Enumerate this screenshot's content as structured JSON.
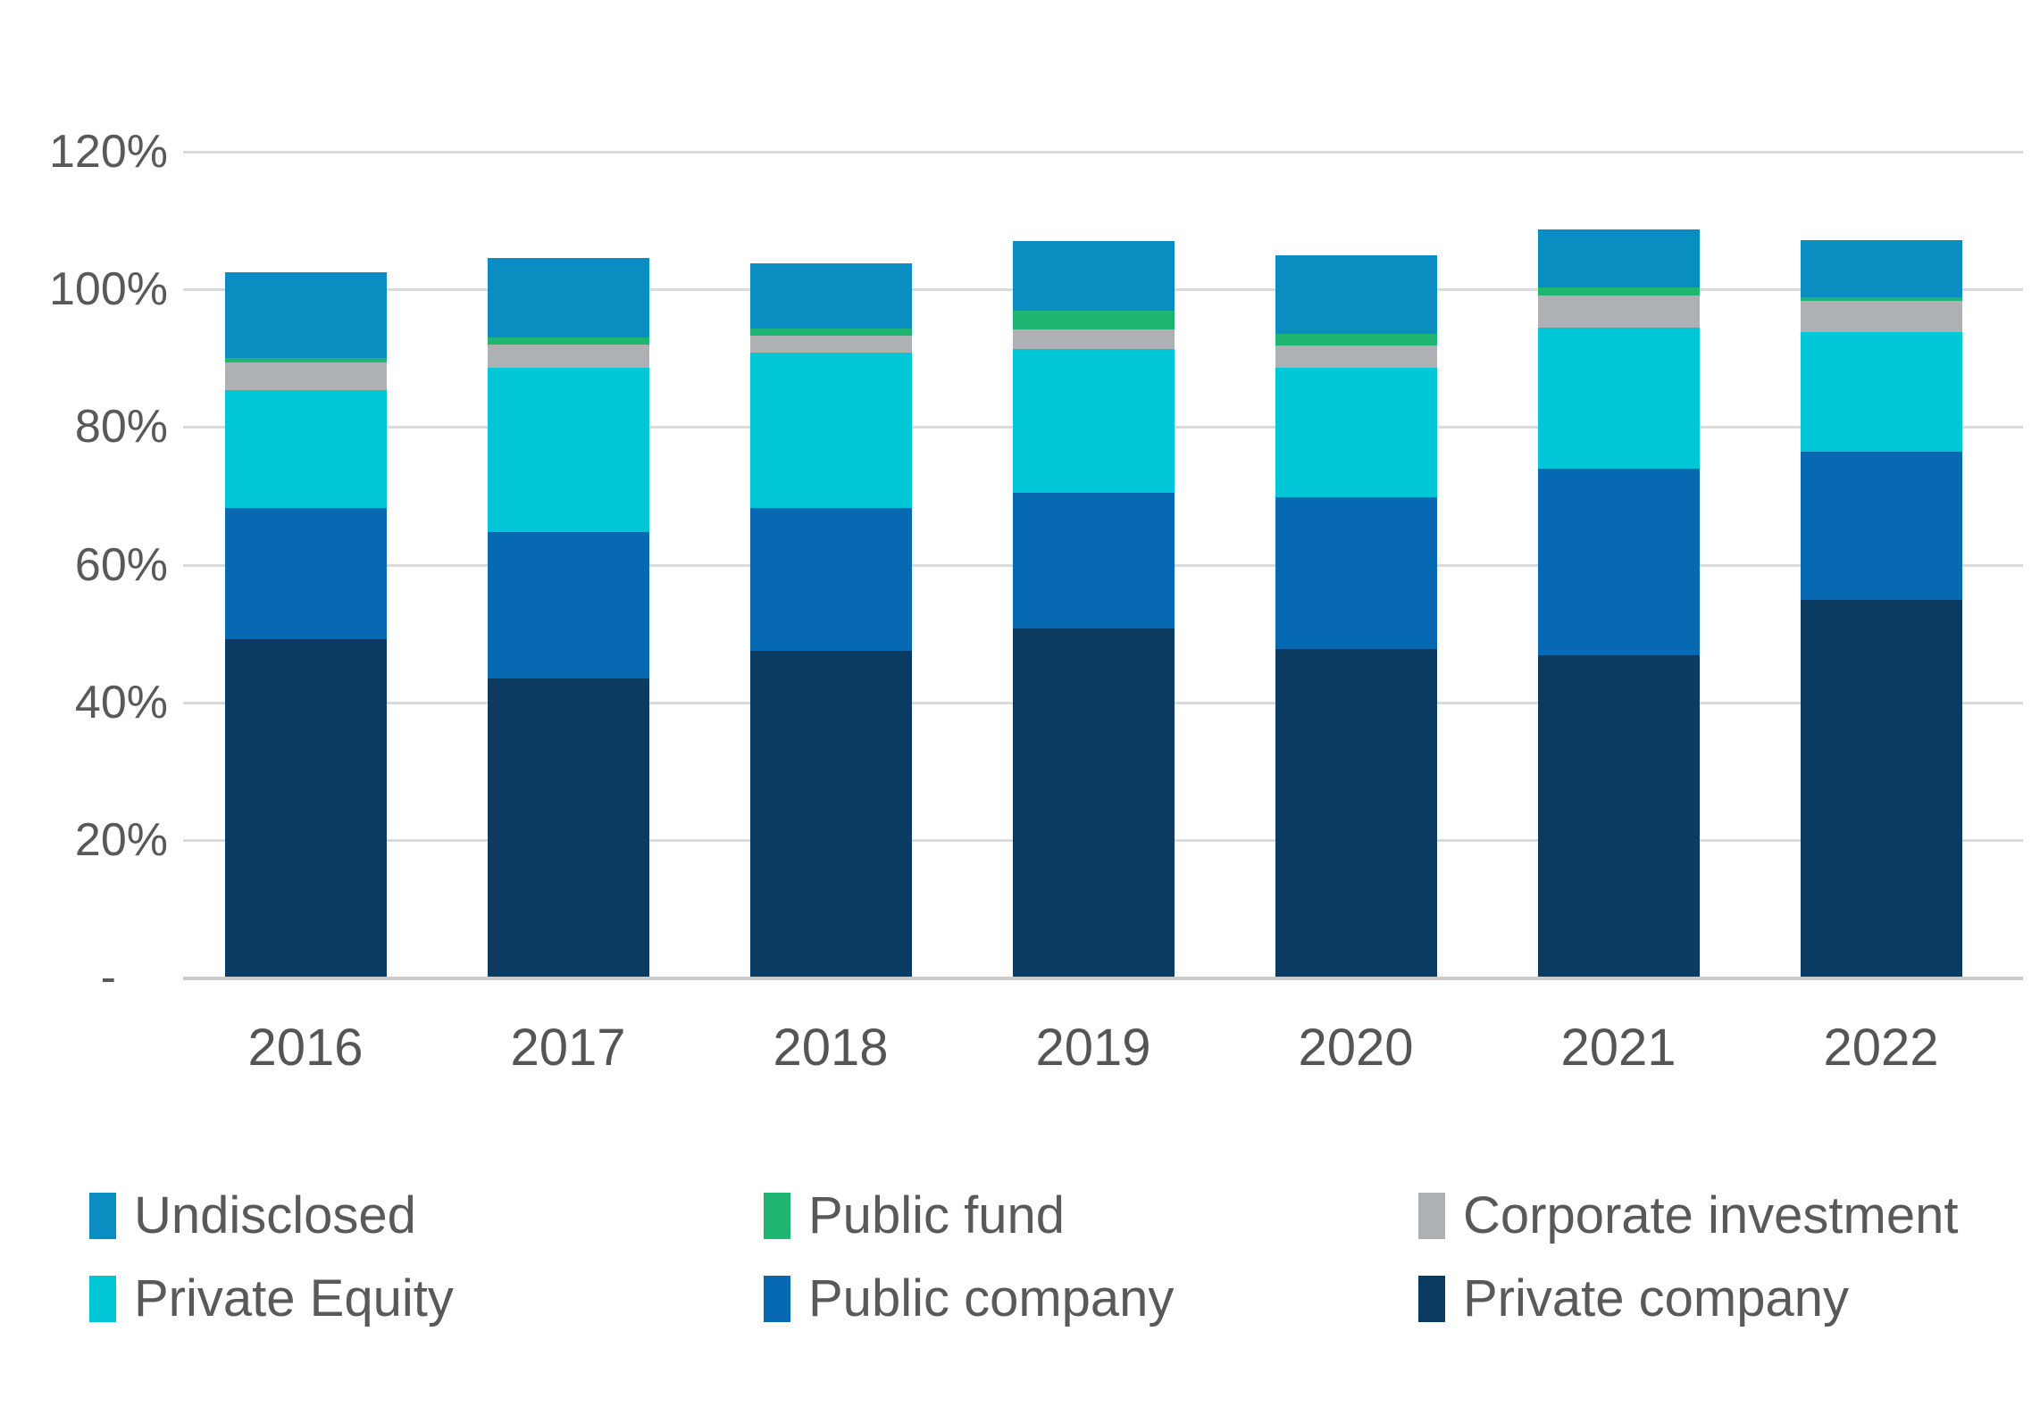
{
  "chart_data": {
    "type": "bar",
    "stacked": true,
    "title": "",
    "xlabel": "",
    "ylabel": "",
    "categories": [
      "2016",
      "2017",
      "2018",
      "2019",
      "2020",
      "2021",
      "2022"
    ],
    "series": [
      {
        "name": "Private company",
        "color": "#0B3B60",
        "values": [
          49.2,
          43.5,
          47.5,
          50.7,
          47.7,
          46.8,
          54.9
        ]
      },
      {
        "name": "Public company",
        "color": "#0669B1",
        "values": [
          19.0,
          21.2,
          20.8,
          19.7,
          22.1,
          27.2,
          21.5
        ]
      },
      {
        "name": "Private Equity",
        "color": "#00C6D5",
        "values": [
          17.1,
          23.9,
          22.5,
          20.9,
          18.8,
          20.5,
          17.4
        ]
      },
      {
        "name": "Corporate investment",
        "color": "#AEB1B3",
        "values": [
          4.1,
          3.4,
          2.5,
          2.9,
          3.3,
          4.6,
          4.6
        ]
      },
      {
        "name": "Public fund",
        "color": "#1FB573",
        "values": [
          0.6,
          1.0,
          1.0,
          2.7,
          1.6,
          1.2,
          0.5
        ]
      },
      {
        "name": "Undisclosed",
        "color": "#0A8DC0",
        "values": [
          12.5,
          11.5,
          9.5,
          10.1,
          11.5,
          8.4,
          8.3
        ]
      }
    ],
    "ylim": [
      0,
      120
    ],
    "ytick_step": 20,
    "ytick_labels": [
      "-",
      "20%",
      "40%",
      "60%",
      "80%",
      "100%",
      "120%"
    ],
    "grid": true,
    "legend_position": "bottom",
    "legend_order": [
      "Undisclosed",
      "Public fund",
      "Corporate investment",
      "Private Equity",
      "Public company",
      "Private company"
    ]
  },
  "style": {
    "gridline_color": "#DADADA",
    "baseline_color": "#CBCBCB",
    "text_color": "#595959"
  }
}
